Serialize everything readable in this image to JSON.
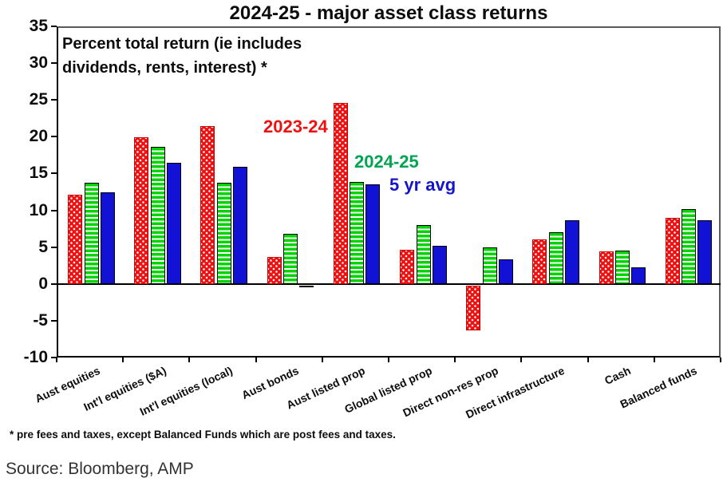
{
  "title": "2024-25 - major asset class returns",
  "annotation": {
    "line1": "Percent total return (ie includes",
    "line2": "dividends, rents, interest) *"
  },
  "footnote": "* pre fees and taxes, except Balanced Funds which are post fees and taxes.",
  "source": "Source: Bloomberg, AMP",
  "colors": {
    "red": "#ee1111",
    "red_edge": "#cc0000",
    "green": "#00d400",
    "green_text": "#00a550",
    "blue": "#1212d6",
    "blue_text": "#1515cc",
    "bar_border": "#000000"
  },
  "chart_data": {
    "type": "bar",
    "title": "2024-25 - major asset class returns",
    "ylabel": "Percent total return (ie includes dividends, rents, interest) *",
    "ylim": [
      -10,
      35
    ],
    "ytick_step": 5,
    "grid": false,
    "legend_position": "inside-top-middle",
    "categories": [
      "Aust equities",
      "Int'l equities ($A)",
      "Int'l equities (local)",
      "Aust bonds",
      "Aust listed prop",
      "Global listed prop",
      "Direct non-res prop",
      "Direct infrastructure",
      "Cash",
      "Balanced funds"
    ],
    "series": [
      {
        "name": "2023-24",
        "color_key": "red",
        "values": [
          12.1,
          19.9,
          21.5,
          3.7,
          24.6,
          4.6,
          -6.1,
          6.1,
          4.4,
          9.0
        ]
      },
      {
        "name": "2024-25",
        "color_key": "green",
        "values": [
          13.8,
          18.6,
          13.7,
          6.8,
          13.9,
          8.0,
          5.0,
          7.0,
          4.5,
          10.2
        ]
      },
      {
        "name": "5 yr avg",
        "color_key": "blue",
        "values": [
          12.5,
          16.5,
          15.9,
          -0.1,
          13.5,
          5.2,
          3.3,
          8.7,
          2.3,
          8.7
        ]
      }
    ]
  }
}
